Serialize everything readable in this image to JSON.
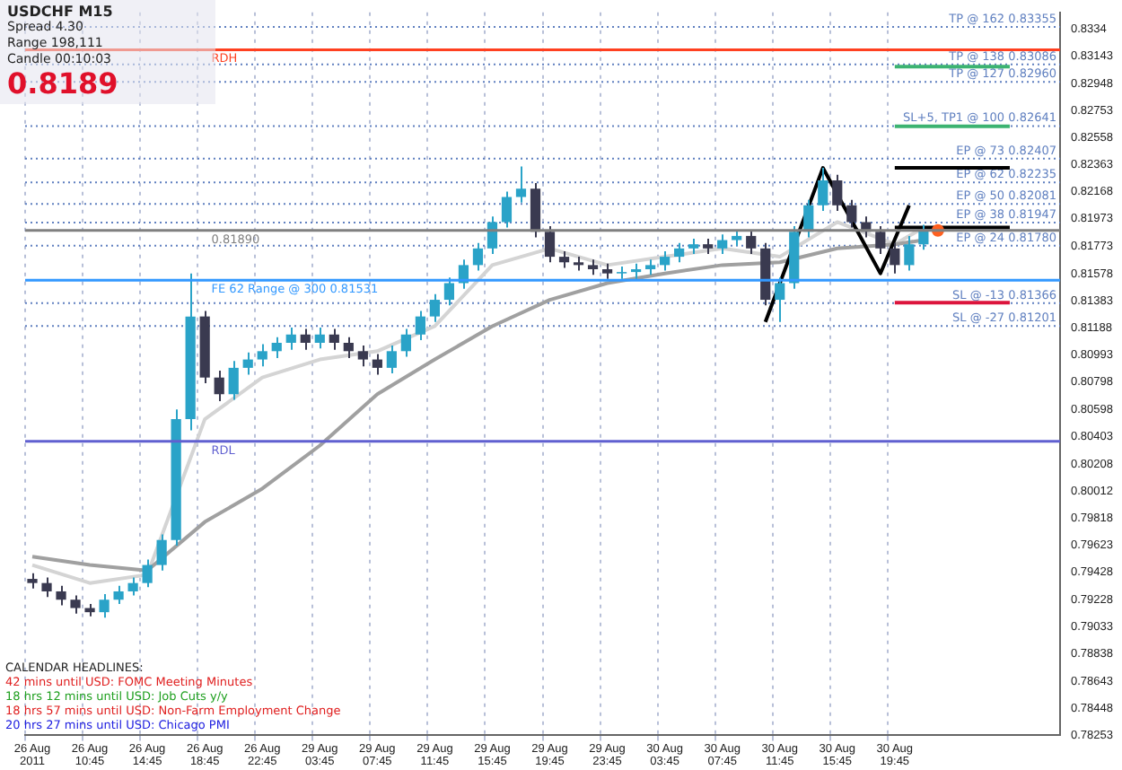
{
  "chart_data": {
    "type": "candlestick",
    "title": "USDCHF M15",
    "categories": [
      "26 Aug 2011",
      null,
      null,
      null,
      "26 Aug 10:45",
      null,
      null,
      null,
      "26 Aug 14:45",
      null,
      null,
      null,
      "26 Aug 18:45",
      null,
      null,
      null,
      "26 Aug 22:45",
      null,
      null,
      null,
      "29 Aug 03:45",
      null,
      null,
      null,
      "29 Aug 07:45",
      null,
      null,
      null,
      "29 Aug 11:45",
      null,
      null,
      null,
      "29 Aug 15:45",
      null,
      null,
      null,
      "29 Aug 19:45",
      null,
      null,
      null,
      "29 Aug 23:45",
      null,
      null,
      null,
      "30 Aug 03:45",
      null,
      null,
      null,
      "30 Aug 07:45",
      null,
      null,
      null,
      "30 Aug 11:45",
      null,
      null,
      null,
      "30 Aug 15:45",
      null,
      null,
      null,
      "30 Aug 19:45",
      null,
      null,
      null,
      null,
      null,
      null,
      null,
      null,
      null,
      null,
      null
    ],
    "ohlc": [
      [
        0.7938,
        0.7942,
        0.7931,
        0.7935
      ],
      [
        0.7935,
        0.7939,
        0.7925,
        0.7929
      ],
      [
        0.7929,
        0.7933,
        0.7919,
        0.7923
      ],
      [
        0.7923,
        0.7926,
        0.7913,
        0.7917
      ],
      [
        0.7917,
        0.792,
        0.7911,
        0.7914
      ],
      [
        0.7914,
        0.7927,
        0.791,
        0.7923
      ],
      [
        0.7923,
        0.7933,
        0.792,
        0.7929
      ],
      [
        0.7929,
        0.7939,
        0.7926,
        0.7935
      ],
      [
        0.7935,
        0.7952,
        0.7932,
        0.7948
      ],
      [
        0.7948,
        0.797,
        0.7944,
        0.7966
      ],
      [
        0.7966,
        0.806,
        0.7962,
        0.8053
      ],
      [
        0.8053,
        0.8158,
        0.8045,
        0.8127
      ],
      [
        0.8127,
        0.8131,
        0.8079,
        0.8083
      ],
      [
        0.8083,
        0.8088,
        0.8066,
        0.8071
      ],
      [
        0.8071,
        0.8095,
        0.8067,
        0.809
      ],
      [
        0.809,
        0.8101,
        0.8085,
        0.8096
      ],
      [
        0.8096,
        0.8107,
        0.8091,
        0.8102
      ],
      [
        0.8102,
        0.8112,
        0.8097,
        0.8108
      ],
      [
        0.8108,
        0.8119,
        0.8103,
        0.8114
      ],
      [
        0.8114,
        0.8118,
        0.8103,
        0.8108
      ],
      [
        0.8108,
        0.8119,
        0.8104,
        0.8114
      ],
      [
        0.8114,
        0.8118,
        0.8103,
        0.8108
      ],
      [
        0.8108,
        0.8112,
        0.8097,
        0.8102
      ],
      [
        0.8102,
        0.8106,
        0.8091,
        0.8096
      ],
      [
        0.8096,
        0.81,
        0.8085,
        0.809
      ],
      [
        0.809,
        0.8106,
        0.8086,
        0.8102
      ],
      [
        0.8102,
        0.8118,
        0.8098,
        0.8114
      ],
      [
        0.8114,
        0.8131,
        0.811,
        0.8127
      ],
      [
        0.8127,
        0.8143,
        0.8123,
        0.8139
      ],
      [
        0.8139,
        0.8155,
        0.8135,
        0.8151
      ],
      [
        0.8151,
        0.8168,
        0.8147,
        0.8164
      ],
      [
        0.8164,
        0.818,
        0.816,
        0.8176
      ],
      [
        0.8176,
        0.8199,
        0.8172,
        0.8195
      ],
      [
        0.8195,
        0.8217,
        0.8191,
        0.8213
      ],
      [
        0.8213,
        0.8235,
        0.8209,
        0.8219
      ],
      [
        0.8219,
        0.8223,
        0.8184,
        0.8188
      ],
      [
        0.8188,
        0.8192,
        0.8166,
        0.817
      ],
      [
        0.817,
        0.8174,
        0.8162,
        0.8166
      ],
      [
        0.8166,
        0.817,
        0.816,
        0.8164
      ],
      [
        0.8164,
        0.8168,
        0.8157,
        0.8161
      ],
      [
        0.8161,
        0.8165,
        0.8154,
        0.8158
      ],
      [
        0.8158,
        0.8163,
        0.8154,
        0.8159
      ],
      [
        0.8159,
        0.8165,
        0.8154,
        0.8161
      ],
      [
        0.8161,
        0.8168,
        0.8157,
        0.8164
      ],
      [
        0.8164,
        0.8174,
        0.816,
        0.817
      ],
      [
        0.817,
        0.818,
        0.8166,
        0.8176
      ],
      [
        0.8176,
        0.8183,
        0.8172,
        0.8179
      ],
      [
        0.8179,
        0.8183,
        0.8172,
        0.8176
      ],
      [
        0.8176,
        0.8186,
        0.8172,
        0.8182
      ],
      [
        0.8182,
        0.8189,
        0.8178,
        0.8185
      ],
      [
        0.8185,
        0.8189,
        0.8172,
        0.8176
      ],
      [
        0.8176,
        0.818,
        0.8135,
        0.8139
      ],
      [
        0.8139,
        0.8155,
        0.8123,
        0.8151
      ],
      [
        0.8151,
        0.8192,
        0.8147,
        0.8188
      ],
      [
        0.8188,
        0.8211,
        0.8184,
        0.8207
      ],
      [
        0.8207,
        0.8234,
        0.8203,
        0.8225
      ],
      [
        0.8225,
        0.8229,
        0.8203,
        0.8207
      ],
      [
        0.8207,
        0.8211,
        0.8191,
        0.8195
      ],
      [
        0.8195,
        0.8199,
        0.8184,
        0.8188
      ],
      [
        0.8188,
        0.8192,
        0.8172,
        0.8176
      ],
      [
        0.8176,
        0.818,
        0.8158,
        0.8164
      ],
      [
        0.8164,
        0.8185,
        0.816,
        0.8179
      ],
      [
        0.8179,
        0.8193,
        0.8175,
        0.8189
      ],
      null,
      null,
      null,
      null,
      null,
      null,
      null,
      null,
      null
    ],
    "series": [
      {
        "type": "line",
        "color": "#d4d4d4",
        "values": [
          0.7948,
          null,
          null,
          null,
          0.7935,
          null,
          null,
          null,
          0.7941,
          null,
          null,
          null,
          0.8053,
          null,
          null,
          null,
          0.8083,
          null,
          null,
          null,
          0.8096,
          null,
          null,
          null,
          0.8102,
          null,
          null,
          null,
          0.812,
          null,
          null,
          null,
          0.8164,
          null,
          null,
          null,
          0.8176,
          null,
          null,
          null,
          0.8164,
          null,
          null,
          null,
          0.817,
          null,
          null,
          null,
          0.8176,
          null,
          null,
          null,
          0.817,
          null,
          null,
          null,
          0.8195,
          null,
          null,
          null,
          0.8179,
          null,
          0.8191,
          null,
          null,
          null,
          null,
          null,
          null,
          null,
          null,
          null
        ]
      },
      {
        "type": "line",
        "color": "#a0a0a0",
        "values": [
          0.7954,
          null,
          null,
          null,
          0.7948,
          null,
          null,
          null,
          0.7944,
          null,
          null,
          null,
          0.7979,
          null,
          null,
          null,
          0.8003,
          null,
          null,
          null,
          0.8034,
          null,
          null,
          null,
          0.8071,
          null,
          null,
          null,
          0.8096,
          null,
          null,
          null,
          0.812,
          null,
          null,
          null,
          0.8139,
          null,
          null,
          null,
          0.8151,
          null,
          null,
          null,
          0.8158,
          null,
          null,
          null,
          0.8164,
          null,
          null,
          null,
          0.8166,
          null,
          null,
          null,
          0.8176,
          null,
          null,
          null,
          0.8179,
          null,
          0.8182,
          null,
          null,
          null,
          null,
          null,
          null,
          null,
          null,
          null
        ]
      },
      {
        "type": "line",
        "color": "#000000",
        "values": [
          null,
          null,
          null,
          null,
          null,
          null,
          null,
          null,
          null,
          null,
          null,
          null,
          null,
          null,
          null,
          null,
          null,
          null,
          null,
          null,
          null,
          null,
          null,
          null,
          null,
          null,
          null,
          null,
          null,
          null,
          null,
          null,
          null,
          null,
          null,
          null,
          null,
          null,
          null,
          null,
          null,
          null,
          null,
          null,
          null,
          null,
          null,
          null,
          null,
          null,
          null,
          0.8123,
          null,
          null,
          null,
          0.8234,
          null,
          null,
          null,
          0.8158,
          null,
          0.8207,
          null,
          null,
          null,
          null,
          null,
          null,
          null,
          null,
          null,
          null
        ]
      },
      {
        "type": "line",
        "color": "#3cb371",
        "values": [
          null,
          null,
          null,
          null,
          null,
          null,
          null,
          null,
          null,
          null,
          null,
          null,
          null,
          null,
          null,
          null,
          null,
          null,
          null,
          null,
          null,
          null,
          null,
          null,
          null,
          null,
          null,
          null,
          null,
          null,
          null,
          null,
          null,
          null,
          null,
          null,
          null,
          null,
          null,
          null,
          null,
          null,
          null,
          null,
          null,
          null,
          null,
          null,
          null,
          null,
          null,
          null,
          null,
          null,
          null,
          null,
          null,
          null,
          null,
          null,
          0.8307,
          null,
          null,
          null,
          null,
          null,
          null,
          null,
          0.8307,
          null,
          null,
          null
        ]
      },
      {
        "type": "line",
        "color": "#3cb371",
        "values": [
          null,
          null,
          null,
          null,
          null,
          null,
          null,
          null,
          null,
          null,
          null,
          null,
          null,
          null,
          null,
          null,
          null,
          null,
          null,
          null,
          null,
          null,
          null,
          null,
          null,
          null,
          null,
          null,
          null,
          null,
          null,
          null,
          null,
          null,
          null,
          null,
          null,
          null,
          null,
          null,
          null,
          null,
          null,
          null,
          null,
          null,
          null,
          null,
          null,
          null,
          null,
          null,
          null,
          null,
          null,
          null,
          null,
          null,
          null,
          null,
          0.8264,
          null,
          null,
          null,
          null,
          null,
          null,
          null,
          0.8264,
          null,
          null,
          null
        ]
      },
      {
        "type": "line",
        "color": "#000000",
        "values": [
          null,
          null,
          null,
          null,
          null,
          null,
          null,
          null,
          null,
          null,
          null,
          null,
          null,
          null,
          null,
          null,
          null,
          null,
          null,
          null,
          null,
          null,
          null,
          null,
          null,
          null,
          null,
          null,
          null,
          null,
          null,
          null,
          null,
          null,
          null,
          null,
          null,
          null,
          null,
          null,
          null,
          null,
          null,
          null,
          null,
          null,
          null,
          null,
          null,
          null,
          null,
          null,
          null,
          null,
          null,
          null,
          null,
          null,
          null,
          null,
          0.8234,
          null,
          null,
          null,
          null,
          null,
          null,
          null,
          0.8234,
          null,
          null,
          null
        ]
      },
      {
        "type": "line",
        "color": "#000000",
        "values": [
          null,
          null,
          null,
          null,
          null,
          null,
          null,
          null,
          null,
          null,
          null,
          null,
          null,
          null,
          null,
          null,
          null,
          null,
          null,
          null,
          null,
          null,
          null,
          null,
          null,
          null,
          null,
          null,
          null,
          null,
          null,
          null,
          null,
          null,
          null,
          null,
          null,
          null,
          null,
          null,
          null,
          null,
          null,
          null,
          null,
          null,
          null,
          null,
          null,
          null,
          null,
          null,
          null,
          null,
          null,
          null,
          null,
          null,
          null,
          null,
          0.8191,
          null,
          null,
          null,
          null,
          null,
          null,
          null,
          0.8191,
          null,
          null,
          null
        ]
      },
      {
        "type": "line",
        "color": "#dc143c",
        "values": [
          null,
          null,
          null,
          null,
          null,
          null,
          null,
          null,
          null,
          null,
          null,
          null,
          null,
          null,
          null,
          null,
          null,
          null,
          null,
          null,
          null,
          null,
          null,
          null,
          null,
          null,
          null,
          null,
          null,
          null,
          null,
          null,
          null,
          null,
          null,
          null,
          null,
          null,
          null,
          null,
          null,
          null,
          null,
          null,
          null,
          null,
          null,
          null,
          null,
          null,
          null,
          null,
          null,
          null,
          null,
          null,
          null,
          null,
          null,
          null,
          0.8137,
          null,
          null,
          null,
          null,
          null,
          null,
          null,
          0.8137,
          null,
          null,
          null
        ]
      },
      {
        "type": "scatter",
        "color": "#ff6020",
        "values": [
          null,
          null,
          null,
          null,
          null,
          null,
          null,
          null,
          null,
          null,
          null,
          null,
          null,
          null,
          null,
          null,
          null,
          null,
          null,
          null,
          null,
          null,
          null,
          null,
          null,
          null,
          null,
          null,
          null,
          null,
          null,
          null,
          null,
          null,
          null,
          null,
          null,
          null,
          null,
          null,
          null,
          null,
          null,
          null,
          null,
          null,
          null,
          null,
          null,
          null,
          null,
          null,
          null,
          null,
          null,
          null,
          null,
          null,
          null,
          null,
          null,
          null,
          null,
          0.8189,
          null,
          null,
          null,
          null,
          null,
          null,
          null,
          null
        ]
      }
    ],
    "ylim": [
      0.78253,
      0.8346
    ],
    "yticks": [
      0.78253,
      0.78448,
      0.78643,
      0.78838,
      0.79033,
      0.79228,
      0.79428,
      0.79623,
      0.79818,
      0.80012,
      0.80208,
      0.80403,
      0.80598,
      0.80798,
      0.80993,
      0.81188,
      0.81383,
      0.81578,
      0.81773,
      0.81973,
      0.82168,
      0.82363,
      0.82558,
      0.82753,
      0.82948,
      0.83143,
      0.8334
    ],
    "grid": "x",
    "legend": false,
    "ref_lines": [
      {
        "axis": "y",
        "value": 0.83355,
        "label": "TP @ 162 0.83355",
        "color": "#6080c0",
        "line_style": "dotted"
      },
      {
        "axis": "y",
        "value": 0.83086,
        "label": "TP @ 138 0.83086",
        "color": "#6080c0",
        "line_style": "dotted"
      },
      {
        "axis": "y",
        "value": 0.8296,
        "label": "TP @ 127 0.82960",
        "color": "#6080c0",
        "line_style": "dotted"
      },
      {
        "axis": "y",
        "value": 0.82641,
        "label": "SL+5, TP1 @ 100 0.82641",
        "color": "#6080c0",
        "line_style": "dotted"
      },
      {
        "axis": "y",
        "value": 0.82407,
        "label": "EP @ 73 0.82407",
        "color": "#6080c0",
        "line_style": "dotted"
      },
      {
        "axis": "y",
        "value": 0.82235,
        "label": "EP @ 62 0.82235",
        "color": "#6080c0",
        "line_style": "dotted"
      },
      {
        "axis": "y",
        "value": 0.82081,
        "label": "EP @ 50 0.82081",
        "color": "#6080c0",
        "line_style": "dotted"
      },
      {
        "axis": "y",
        "value": 0.81947,
        "label": "EP @ 38 0.81947",
        "color": "#6080c0",
        "line_style": "dotted"
      },
      {
        "axis": "y",
        "value": 0.8178,
        "label": "EP @ 24 0.81780",
        "color": "#6080c0",
        "line_style": "dotted"
      },
      {
        "axis": "y",
        "value": 0.81531,
        "label": "FE 62 Range @ 300 0.81531",
        "color": "#3399ff",
        "line_style": "solid"
      },
      {
        "axis": "y",
        "value": 0.81366,
        "label": "SL @ -13 0.81366",
        "color": "#6080c0",
        "line_style": "dotted"
      },
      {
        "axis": "y",
        "value": 0.81201,
        "label": "SL @ -27 0.81201",
        "color": "#6080c0",
        "line_style": "dotted"
      },
      {
        "axis": "y",
        "value": 0.8319,
        "label": "RDH",
        "color": "#ff4020",
        "line_style": "solid"
      },
      {
        "axis": "y",
        "value": 0.8037,
        "label": "RDL",
        "color": "#6060d0",
        "line_style": "solid"
      },
      {
        "axis": "y",
        "value": 0.8189,
        "label": "0.81890",
        "color": "#808080",
        "line_style": "solid"
      }
    ],
    "annotations": [
      "Spread 4.30",
      "Range 198,111",
      "Candle 00:10:03",
      "0.8189",
      "CALENDAR HEADLINES:",
      "42 mins until USD: FOMC Meeting Minutes",
      "18 hrs 12 mins until USD: Job Cuts y/y",
      "18 hrs 57 mins until USD: Non-Farm Employment Change",
      "20 hrs 27 mins until USD: Chicago PMI"
    ]
  }
}
